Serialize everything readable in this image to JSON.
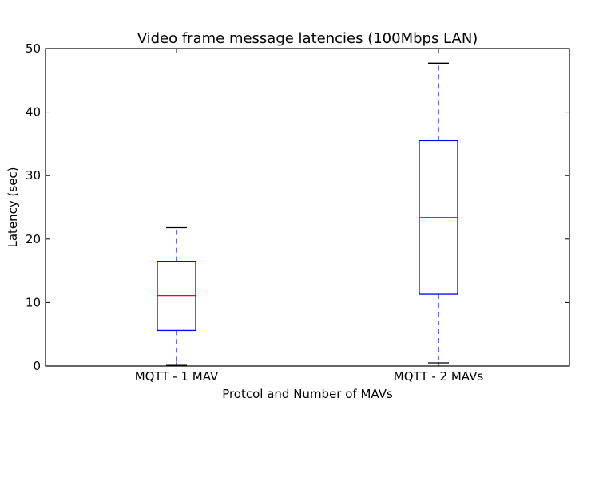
{
  "chart_data": {
    "type": "boxplot",
    "title": "Video frame message latencies (100Mbps LAN)",
    "xlabel": "Protcol and Number of MAVs",
    "ylabel": "Latency (sec)",
    "ylim": [
      0,
      50
    ],
    "yticks": [
      0,
      10,
      20,
      30,
      40,
      50
    ],
    "grid": false,
    "categories": [
      "MQTT - 1 MAV",
      "MQTT - 2 MAVs"
    ],
    "boxes": [
      {
        "label": "MQTT - 1 MAV",
        "whisker_low": 0.1,
        "q1": 5.6,
        "median": 11.1,
        "q3": 16.5,
        "whisker_high": 21.8
      },
      {
        "label": "MQTT - 2 MAVs",
        "whisker_low": 0.5,
        "q1": 11.3,
        "median": 23.4,
        "q3": 35.5,
        "whisker_high": 47.7
      }
    ],
    "colors": {
      "box": "#0000ff",
      "median": "#ff0000",
      "whisker": "#0000ff",
      "cap": "#000000",
      "frame": "#000000"
    }
  }
}
